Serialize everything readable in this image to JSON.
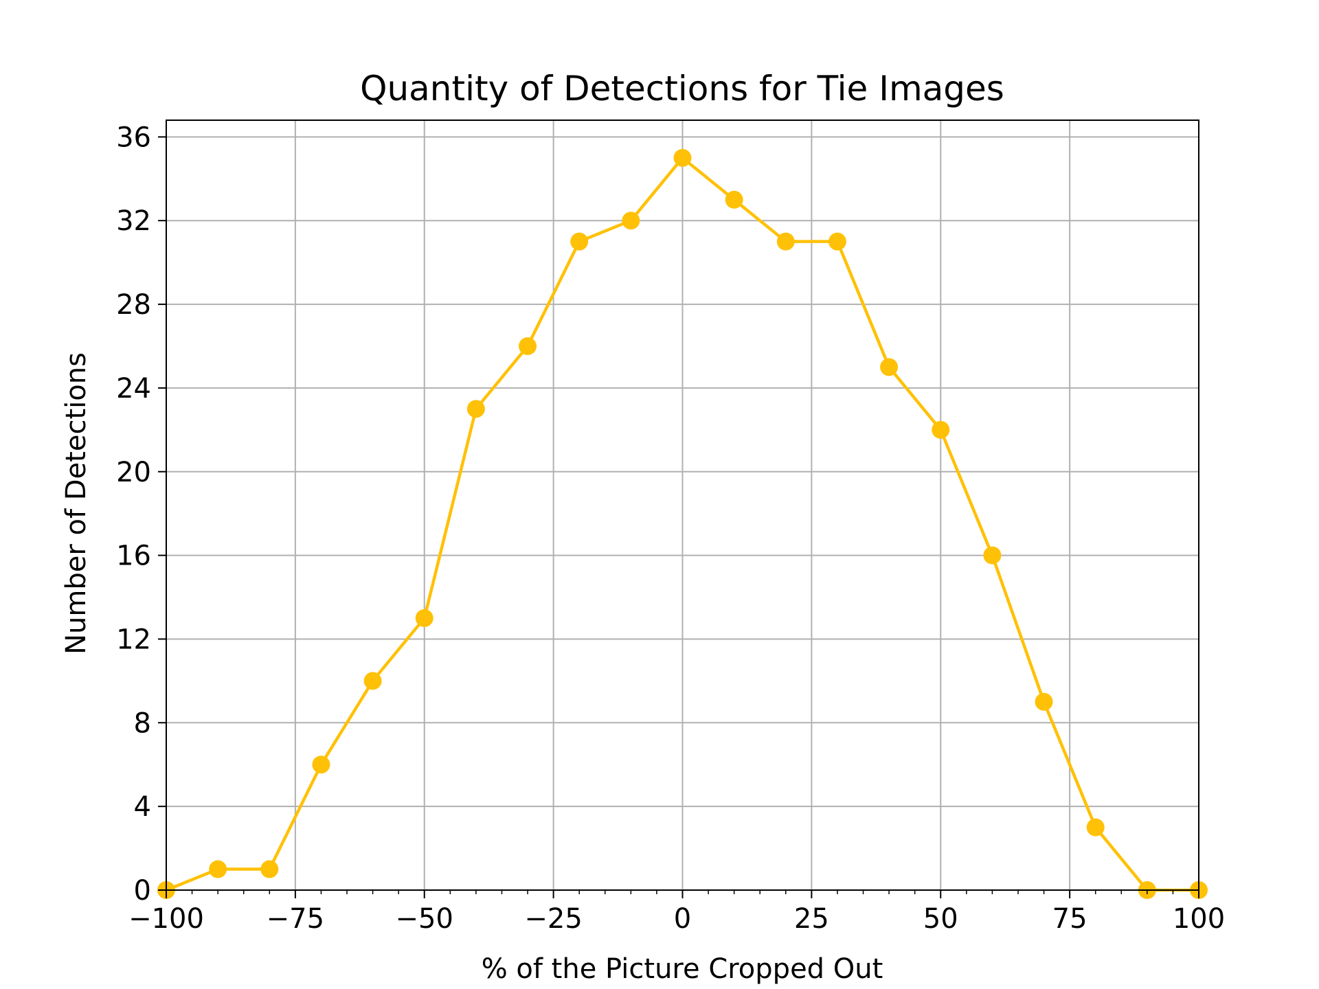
{
  "chart_data": {
    "type": "line",
    "title": "Quantity of Detections for Tie Images",
    "xlabel": "% of the Picture Cropped Out",
    "ylabel": "Number of Detections",
    "xlim": [
      -100,
      100
    ],
    "ylim": [
      0,
      36.8
    ],
    "grid": true,
    "x_ticks": [
      -100,
      -75,
      -50,
      -25,
      0,
      25,
      50,
      75,
      100
    ],
    "x_tick_labels": [
      "−100",
      "−75",
      "−50",
      "−25",
      "0",
      "25",
      "50",
      "75",
      "100"
    ],
    "y_ticks": [
      0,
      4,
      8,
      12,
      16,
      20,
      24,
      28,
      32,
      36
    ],
    "y_tick_labels": [
      "0",
      "4",
      "8",
      "12",
      "16",
      "20",
      "24",
      "28",
      "32",
      "36"
    ],
    "series": [
      {
        "color": "#FFC107",
        "marker": "circle",
        "x": [
          -100,
          -90,
          -80,
          -70,
          -60,
          -50,
          -40,
          -30,
          -20,
          -10,
          0,
          10,
          20,
          30,
          40,
          50,
          60,
          70,
          80,
          90,
          100
        ],
        "y": [
          0,
          1,
          1,
          6,
          10,
          13,
          23,
          26,
          31,
          32,
          35,
          33,
          31,
          31,
          25,
          22,
          16,
          9,
          3,
          0,
          0
        ]
      }
    ]
  }
}
